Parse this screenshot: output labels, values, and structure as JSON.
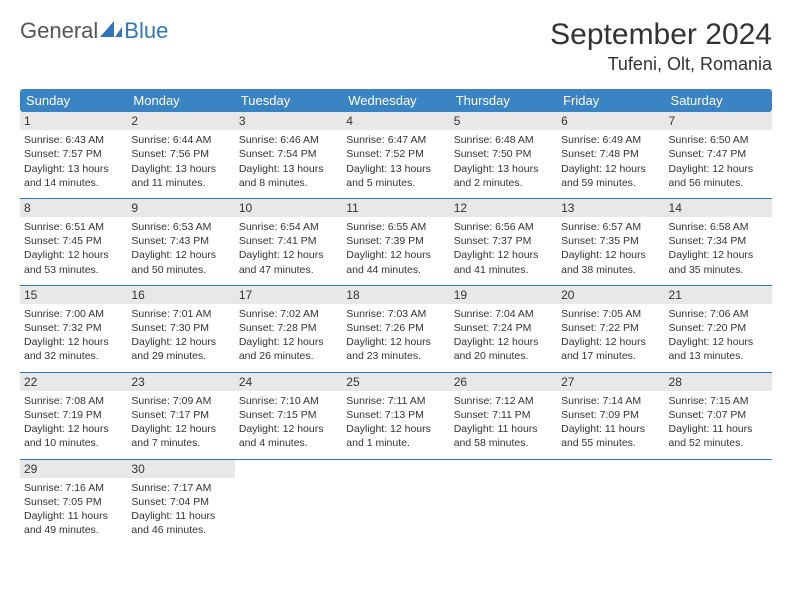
{
  "logo": {
    "text1": "General",
    "text2": "Blue"
  },
  "title": "September 2024",
  "location": "Tufeni, Olt, Romania",
  "colors": {
    "header_bg": "#3a84c4",
    "header_text": "#ffffff",
    "day_band_bg": "#e8e8e8",
    "row_border": "#2e77b8",
    "body_text": "#333333",
    "logo_gray": "#555555",
    "logo_blue": "#2e77b8",
    "page_bg": "#ffffff"
  },
  "weekdays": [
    "Sunday",
    "Monday",
    "Tuesday",
    "Wednesday",
    "Thursday",
    "Friday",
    "Saturday"
  ],
  "weeks": [
    [
      {
        "n": "1",
        "sr": "Sunrise: 6:43 AM",
        "ss": "Sunset: 7:57 PM",
        "d1": "Daylight: 13 hours",
        "d2": "and 14 minutes."
      },
      {
        "n": "2",
        "sr": "Sunrise: 6:44 AM",
        "ss": "Sunset: 7:56 PM",
        "d1": "Daylight: 13 hours",
        "d2": "and 11 minutes."
      },
      {
        "n": "3",
        "sr": "Sunrise: 6:46 AM",
        "ss": "Sunset: 7:54 PM",
        "d1": "Daylight: 13 hours",
        "d2": "and 8 minutes."
      },
      {
        "n": "4",
        "sr": "Sunrise: 6:47 AM",
        "ss": "Sunset: 7:52 PM",
        "d1": "Daylight: 13 hours",
        "d2": "and 5 minutes."
      },
      {
        "n": "5",
        "sr": "Sunrise: 6:48 AM",
        "ss": "Sunset: 7:50 PM",
        "d1": "Daylight: 13 hours",
        "d2": "and 2 minutes."
      },
      {
        "n": "6",
        "sr": "Sunrise: 6:49 AM",
        "ss": "Sunset: 7:48 PM",
        "d1": "Daylight: 12 hours",
        "d2": "and 59 minutes."
      },
      {
        "n": "7",
        "sr": "Sunrise: 6:50 AM",
        "ss": "Sunset: 7:47 PM",
        "d1": "Daylight: 12 hours",
        "d2": "and 56 minutes."
      }
    ],
    [
      {
        "n": "8",
        "sr": "Sunrise: 6:51 AM",
        "ss": "Sunset: 7:45 PM",
        "d1": "Daylight: 12 hours",
        "d2": "and 53 minutes."
      },
      {
        "n": "9",
        "sr": "Sunrise: 6:53 AM",
        "ss": "Sunset: 7:43 PM",
        "d1": "Daylight: 12 hours",
        "d2": "and 50 minutes."
      },
      {
        "n": "10",
        "sr": "Sunrise: 6:54 AM",
        "ss": "Sunset: 7:41 PM",
        "d1": "Daylight: 12 hours",
        "d2": "and 47 minutes."
      },
      {
        "n": "11",
        "sr": "Sunrise: 6:55 AM",
        "ss": "Sunset: 7:39 PM",
        "d1": "Daylight: 12 hours",
        "d2": "and 44 minutes."
      },
      {
        "n": "12",
        "sr": "Sunrise: 6:56 AM",
        "ss": "Sunset: 7:37 PM",
        "d1": "Daylight: 12 hours",
        "d2": "and 41 minutes."
      },
      {
        "n": "13",
        "sr": "Sunrise: 6:57 AM",
        "ss": "Sunset: 7:35 PM",
        "d1": "Daylight: 12 hours",
        "d2": "and 38 minutes."
      },
      {
        "n": "14",
        "sr": "Sunrise: 6:58 AM",
        "ss": "Sunset: 7:34 PM",
        "d1": "Daylight: 12 hours",
        "d2": "and 35 minutes."
      }
    ],
    [
      {
        "n": "15",
        "sr": "Sunrise: 7:00 AM",
        "ss": "Sunset: 7:32 PM",
        "d1": "Daylight: 12 hours",
        "d2": "and 32 minutes."
      },
      {
        "n": "16",
        "sr": "Sunrise: 7:01 AM",
        "ss": "Sunset: 7:30 PM",
        "d1": "Daylight: 12 hours",
        "d2": "and 29 minutes."
      },
      {
        "n": "17",
        "sr": "Sunrise: 7:02 AM",
        "ss": "Sunset: 7:28 PM",
        "d1": "Daylight: 12 hours",
        "d2": "and 26 minutes."
      },
      {
        "n": "18",
        "sr": "Sunrise: 7:03 AM",
        "ss": "Sunset: 7:26 PM",
        "d1": "Daylight: 12 hours",
        "d2": "and 23 minutes."
      },
      {
        "n": "19",
        "sr": "Sunrise: 7:04 AM",
        "ss": "Sunset: 7:24 PM",
        "d1": "Daylight: 12 hours",
        "d2": "and 20 minutes."
      },
      {
        "n": "20",
        "sr": "Sunrise: 7:05 AM",
        "ss": "Sunset: 7:22 PM",
        "d1": "Daylight: 12 hours",
        "d2": "and 17 minutes."
      },
      {
        "n": "21",
        "sr": "Sunrise: 7:06 AM",
        "ss": "Sunset: 7:20 PM",
        "d1": "Daylight: 12 hours",
        "d2": "and 13 minutes."
      }
    ],
    [
      {
        "n": "22",
        "sr": "Sunrise: 7:08 AM",
        "ss": "Sunset: 7:19 PM",
        "d1": "Daylight: 12 hours",
        "d2": "and 10 minutes."
      },
      {
        "n": "23",
        "sr": "Sunrise: 7:09 AM",
        "ss": "Sunset: 7:17 PM",
        "d1": "Daylight: 12 hours",
        "d2": "and 7 minutes."
      },
      {
        "n": "24",
        "sr": "Sunrise: 7:10 AM",
        "ss": "Sunset: 7:15 PM",
        "d1": "Daylight: 12 hours",
        "d2": "and 4 minutes."
      },
      {
        "n": "25",
        "sr": "Sunrise: 7:11 AM",
        "ss": "Sunset: 7:13 PM",
        "d1": "Daylight: 12 hours",
        "d2": "and 1 minute."
      },
      {
        "n": "26",
        "sr": "Sunrise: 7:12 AM",
        "ss": "Sunset: 7:11 PM",
        "d1": "Daylight: 11 hours",
        "d2": "and 58 minutes."
      },
      {
        "n": "27",
        "sr": "Sunrise: 7:14 AM",
        "ss": "Sunset: 7:09 PM",
        "d1": "Daylight: 11 hours",
        "d2": "and 55 minutes."
      },
      {
        "n": "28",
        "sr": "Sunrise: 7:15 AM",
        "ss": "Sunset: 7:07 PM",
        "d1": "Daylight: 11 hours",
        "d2": "and 52 minutes."
      }
    ],
    [
      {
        "n": "29",
        "sr": "Sunrise: 7:16 AM",
        "ss": "Sunset: 7:05 PM",
        "d1": "Daylight: 11 hours",
        "d2": "and 49 minutes."
      },
      {
        "n": "30",
        "sr": "Sunrise: 7:17 AM",
        "ss": "Sunset: 7:04 PM",
        "d1": "Daylight: 11 hours",
        "d2": "and 46 minutes."
      },
      null,
      null,
      null,
      null,
      null
    ]
  ]
}
